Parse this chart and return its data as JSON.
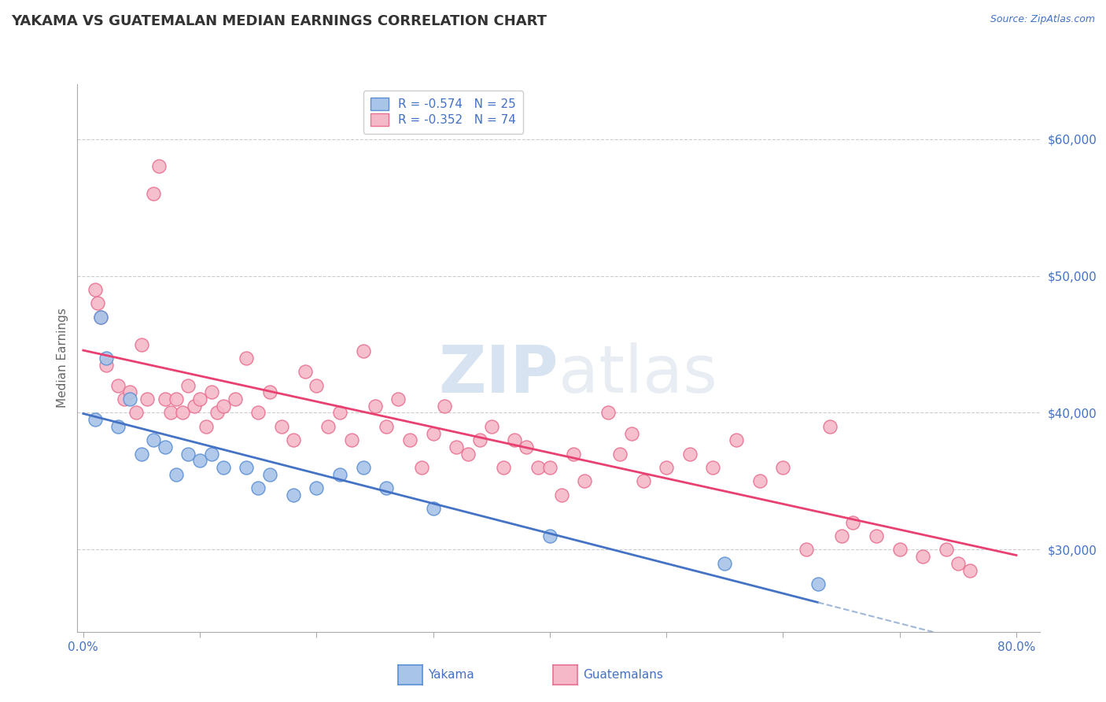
{
  "title": "YAKAMA VS GUATEMALAN MEDIAN EARNINGS CORRELATION CHART",
  "source_text": "Source: ZipAtlas.com",
  "xlabel_yakama": "Yakama",
  "xlabel_guatemalans": "Guatemalans",
  "ylabel": "Median Earnings",
  "yakama_R": -0.574,
  "yakama_N": 25,
  "guatemalan_R": -0.352,
  "guatemalan_N": 74,
  "xmin": 0.0,
  "xmax": 80.0,
  "ymin": 24000,
  "ymax": 64000,
  "yticks": [
    30000,
    40000,
    50000,
    60000
  ],
  "ytick_labels": [
    "$30,000",
    "$40,000",
    "$50,000",
    "$60,000"
  ],
  "xtick_positions": [
    0,
    10,
    20,
    30,
    40,
    50,
    60,
    70,
    80
  ],
  "xtick_labels_show": [
    "0.0%",
    "",
    "",
    "",
    "",
    "",
    "",
    "",
    "80.0%"
  ],
  "color_yakama_fill": "#a8c4e8",
  "color_yakama_edge": "#5b8fd4",
  "color_yakama_line": "#4472c4",
  "color_guatemalan_fill": "#f5b8c8",
  "color_guatemalan_edge": "#e87090",
  "color_guatemalan_line": "#e84070",
  "color_axis_labels": "#4472c4",
  "color_grid": "#cccccc",
  "color_title": "#333333",
  "color_dashed": "#a0b8d8",
  "background_color": "#ffffff",
  "yakama_x": [
    1.0,
    1.5,
    2.0,
    3.0,
    4.0,
    5.0,
    6.0,
    7.0,
    8.0,
    9.0,
    10.0,
    11.0,
    12.0,
    14.0,
    15.0,
    16.0,
    18.0,
    20.0,
    22.0,
    24.0,
    26.0,
    30.0,
    40.0,
    55.0,
    63.0
  ],
  "yakama_y": [
    39500,
    47000,
    44000,
    39000,
    41000,
    37000,
    38000,
    37500,
    35500,
    37000,
    36500,
    37000,
    36000,
    36000,
    34500,
    35500,
    34000,
    34500,
    35500,
    36000,
    34500,
    33000,
    31000,
    29000,
    27500
  ],
  "guatemalan_x": [
    1.0,
    1.2,
    1.5,
    2.0,
    3.0,
    3.5,
    4.0,
    4.5,
    5.0,
    5.5,
    6.0,
    6.5,
    7.0,
    7.5,
    8.0,
    8.5,
    9.0,
    9.5,
    10.0,
    10.5,
    11.0,
    11.5,
    12.0,
    13.0,
    14.0,
    15.0,
    16.0,
    17.0,
    18.0,
    19.0,
    20.0,
    21.0,
    22.0,
    23.0,
    24.0,
    25.0,
    26.0,
    27.0,
    28.0,
    29.0,
    30.0,
    31.0,
    32.0,
    33.0,
    34.0,
    35.0,
    36.0,
    37.0,
    38.0,
    39.0,
    40.0,
    41.0,
    42.0,
    43.0,
    45.0,
    46.0,
    47.0,
    48.0,
    50.0,
    52.0,
    54.0,
    56.0,
    58.0,
    60.0,
    62.0,
    64.0,
    65.0,
    66.0,
    68.0,
    70.0,
    72.0,
    74.0,
    75.0,
    76.0
  ],
  "guatemalan_y": [
    49000,
    48000,
    47000,
    43500,
    42000,
    41000,
    41500,
    40000,
    45000,
    41000,
    56000,
    58000,
    41000,
    40000,
    41000,
    40000,
    42000,
    40500,
    41000,
    39000,
    41500,
    40000,
    40500,
    41000,
    44000,
    40000,
    41500,
    39000,
    38000,
    43000,
    42000,
    39000,
    40000,
    38000,
    44500,
    40500,
    39000,
    41000,
    38000,
    36000,
    38500,
    40500,
    37500,
    37000,
    38000,
    39000,
    36000,
    38000,
    37500,
    36000,
    36000,
    34000,
    37000,
    35000,
    40000,
    37000,
    38500,
    35000,
    36000,
    37000,
    36000,
    38000,
    35000,
    36000,
    30000,
    39000,
    31000,
    32000,
    31000,
    30000,
    29500,
    30000,
    29000,
    28500
  ]
}
